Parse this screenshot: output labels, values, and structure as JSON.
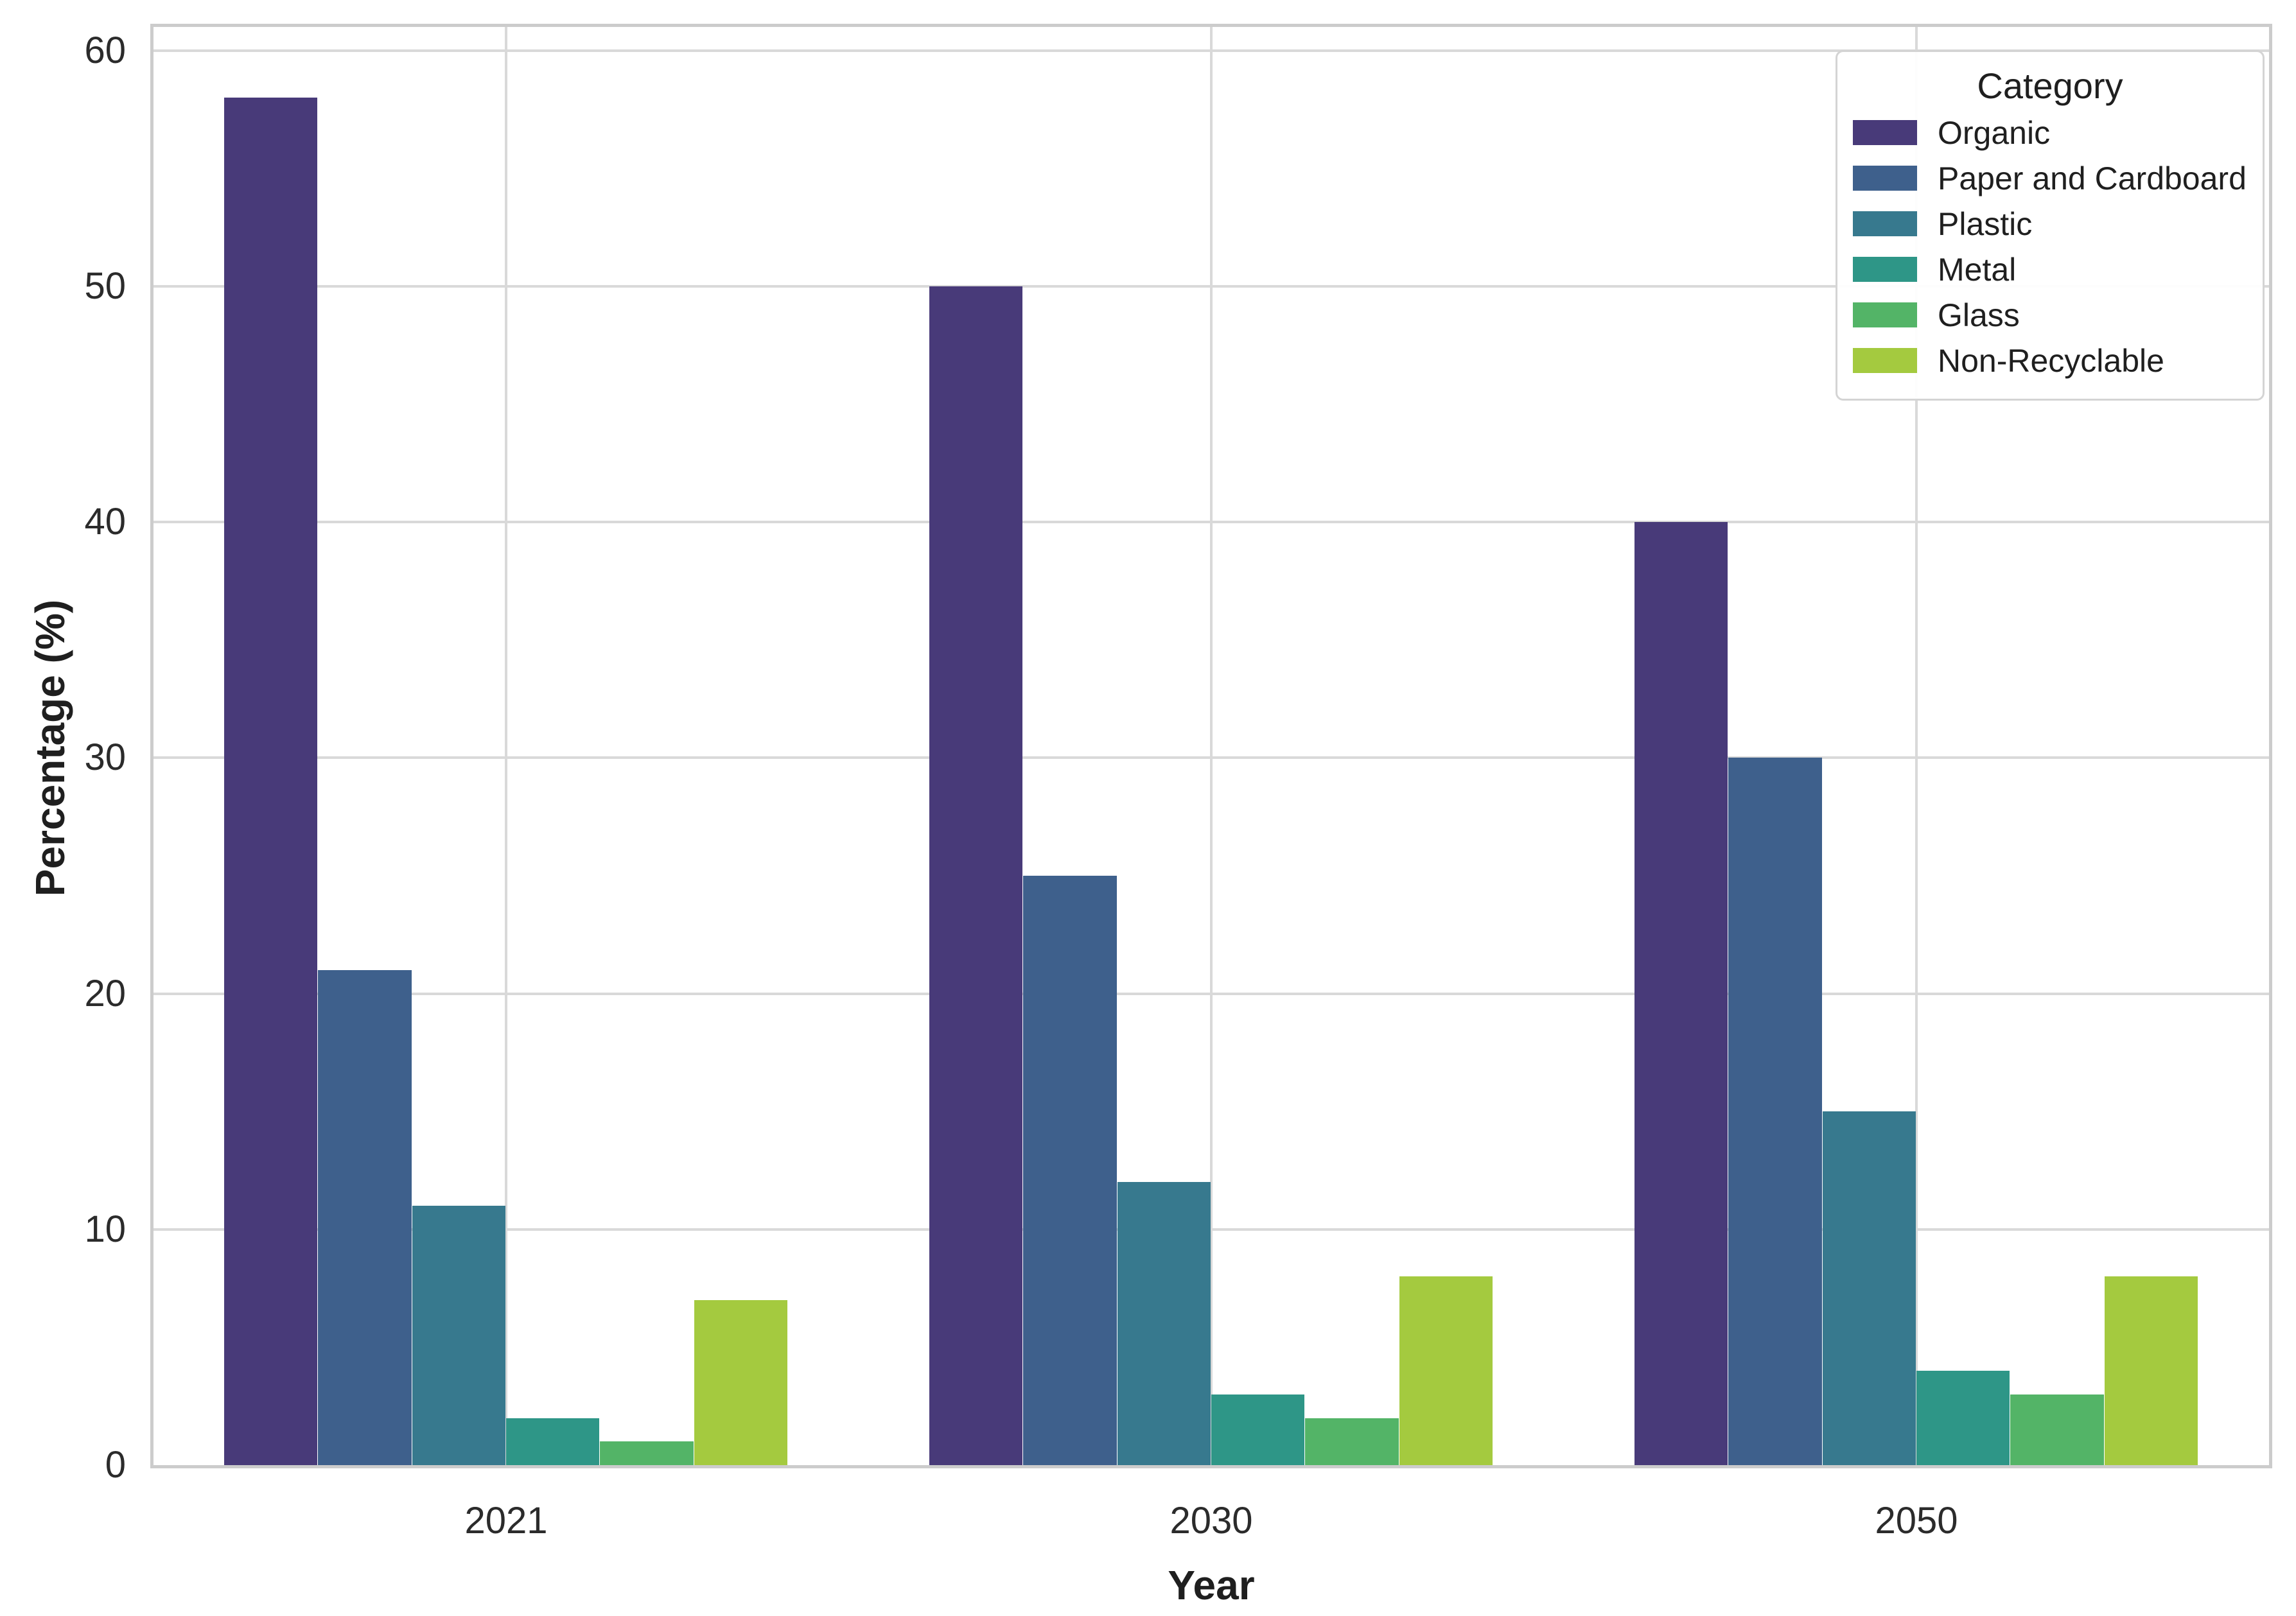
{
  "figure": {
    "background_color": "#ffffff",
    "grid_color": "#d9d9d9",
    "spine_color": "#cccccc",
    "text_color": "#2b2b2b"
  },
  "chart_data": {
    "type": "bar",
    "title": "",
    "xlabel": "Year",
    "ylabel": "Percentage (%)",
    "categories": [
      "2021",
      "2030",
      "2050"
    ],
    "series": [
      {
        "name": "Organic",
        "color": "#483a79",
        "values": [
          58,
          50,
          40
        ]
      },
      {
        "name": "Paper and Cardboard",
        "color": "#3e608c",
        "values": [
          21,
          25,
          30
        ]
      },
      {
        "name": "Plastic",
        "color": "#37798e",
        "values": [
          11,
          12,
          15
        ]
      },
      {
        "name": "Metal",
        "color": "#2e9687",
        "values": [
          2,
          3,
          4
        ]
      },
      {
        "name": "Glass",
        "color": "#53b467",
        "values": [
          1,
          2,
          3
        ]
      },
      {
        "name": "Non-Recyclable",
        "color": "#a4ca3f",
        "values": [
          7,
          8,
          8
        ]
      }
    ],
    "ylim": [
      0,
      61
    ],
    "yticks": [
      0,
      10,
      20,
      30,
      40,
      50,
      60
    ],
    "grid": true,
    "legend": {
      "title": "Category",
      "position": "upper right"
    }
  }
}
